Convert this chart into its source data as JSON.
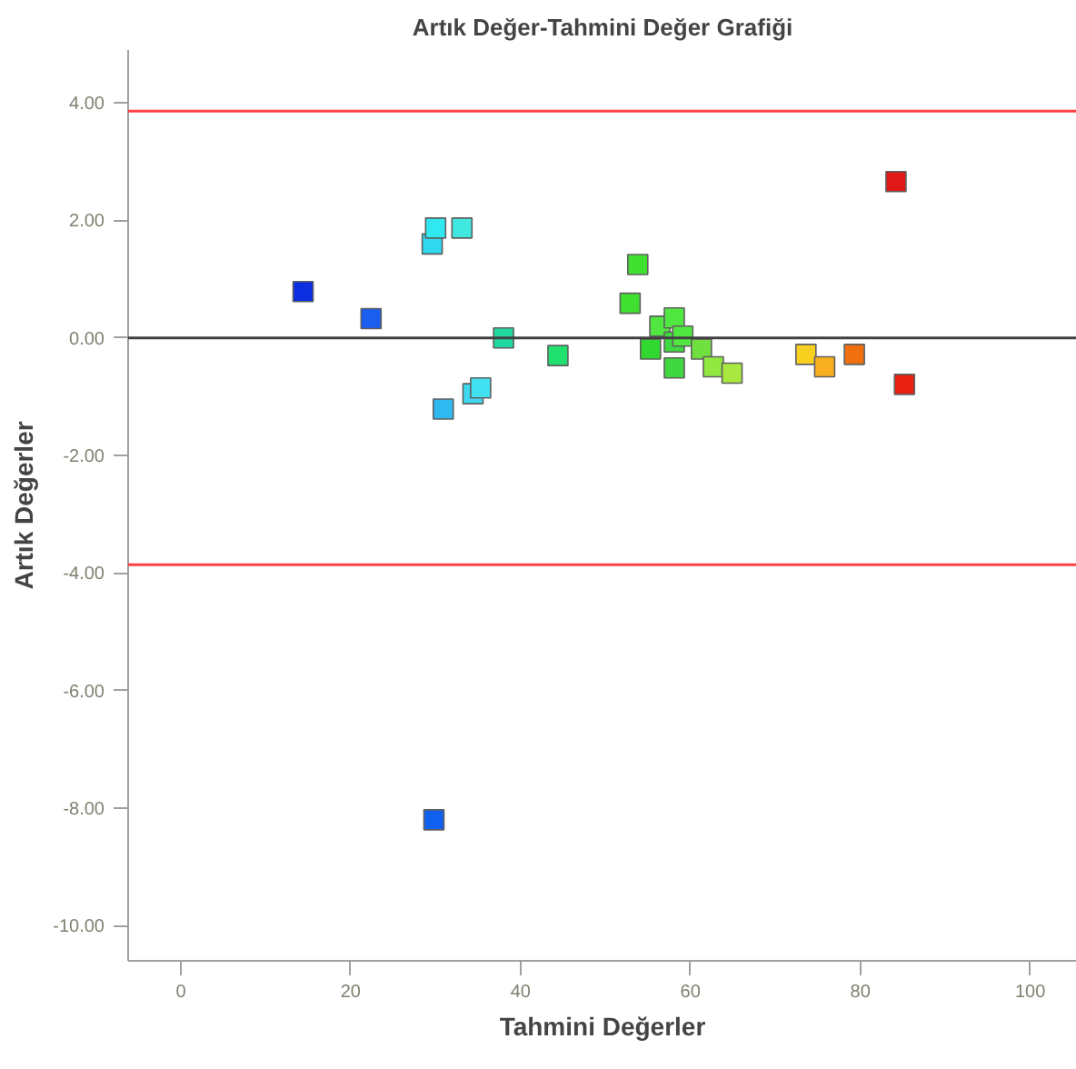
{
  "chart_data": {
    "type": "scatter",
    "title": "Artık Değer-Tahmini Değer Grafiği",
    "xlabel": "Tahmini Değerler",
    "ylabel": "Artık Değerler",
    "xlim": [
      -6.2,
      105.5
    ],
    "ylim": [
      -10.6,
      4.9
    ],
    "xticks": [
      0,
      20,
      40,
      60,
      80,
      100
    ],
    "yticks": [
      {
        "value": 4,
        "label": "4.00"
      },
      {
        "value": 2,
        "label": "2.00"
      },
      {
        "value": 0,
        "label": "0.00"
      },
      {
        "value": -2,
        "label": "-2.00"
      },
      {
        "value": -4,
        "label": "-4.00"
      },
      {
        "value": -6,
        "label": "-6.00"
      },
      {
        "value": -8,
        "label": "-8.00"
      },
      {
        "value": -10,
        "label": "-10.00"
      }
    ],
    "marker": "square",
    "grid": false,
    "ref_lines": [
      {
        "axis": "y",
        "value": 3.86,
        "color": "#ff4040"
      },
      {
        "axis": "y",
        "value": -3.86,
        "color": "#ff4040"
      },
      {
        "axis": "y",
        "value": 0,
        "color": "#404040"
      }
    ],
    "series": [
      {
        "x": [
          14.4,
          22.4,
          29.6,
          30.0,
          33.1,
          30.9,
          34.4,
          35.3,
          38.0,
          44.4,
          53.8,
          52.9,
          55.3,
          56.4,
          58.1,
          58.1,
          59.1,
          58.1,
          61.3,
          62.7,
          64.9,
          73.6,
          75.8,
          79.3,
          85.2,
          84.2,
          29.8
        ],
        "values": [
          0.79,
          0.33,
          1.6,
          1.87,
          1.87,
          -1.21,
          -0.95,
          -0.85,
          0.0,
          -0.3,
          1.25,
          0.59,
          -0.19,
          0.2,
          0.34,
          -0.07,
          0.03,
          -0.51,
          -0.19,
          -0.49,
          -0.6,
          -0.28,
          -0.49,
          -0.28,
          -0.79,
          2.66,
          -8.2
        ],
        "colors": [
          "#0a2ee0",
          "#1a5ef0",
          "#30d8f0",
          "#30e8f0",
          "#40e8e0",
          "#30b8f0",
          "#40d8f0",
          "#40e0f0",
          "#20d8a0",
          "#20e070",
          "#40e030",
          "#40e030",
          "#30d830",
          "#50e840",
          "#50e840",
          "#40d840",
          "#50e840",
          "#40d840",
          "#70e040",
          "#90e840",
          "#a8e840",
          "#f8d020",
          "#f8b020",
          "#f07010",
          "#e82010",
          "#e01818",
          "#1060f0"
        ]
      }
    ]
  }
}
